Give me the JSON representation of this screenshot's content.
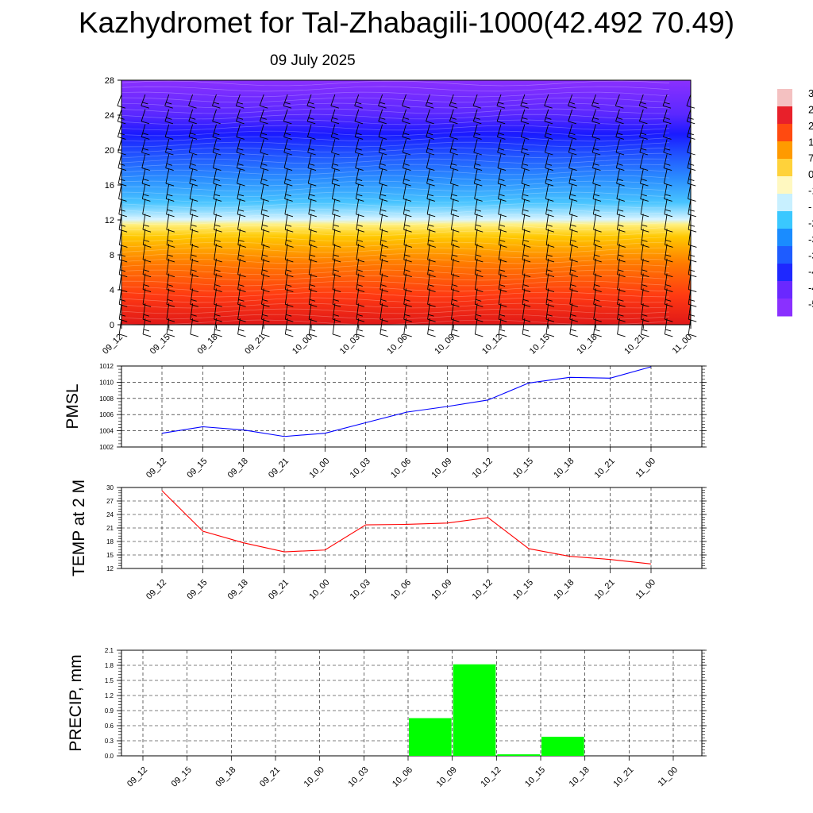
{
  "header": {
    "title": "Kazhydromet for Tal-Zhabagili-1000(42.492 70.49)",
    "subtitle": "09 July 2025"
  },
  "chart_data": [
    {
      "type": "heatmap",
      "title": "",
      "x_ticks": [
        "09_12",
        "09_15",
        "09_18",
        "09_21",
        "10_00",
        "10_03",
        "10_06",
        "10_09",
        "10_12",
        "10_15",
        "10_18",
        "10_21",
        "11_00"
      ],
      "ylim": [
        0,
        28
      ],
      "y_ticks": [
        "0",
        "4",
        "8",
        "12",
        "16",
        "20",
        "24",
        "28"
      ],
      "colorbar": {
        "labels": [
          "3",
          "2",
          "2",
          "1",
          "7",
          "0",
          "-1",
          "-",
          "-2",
          "-3",
          "-3",
          "-4",
          "-4",
          "-5"
        ],
        "colors": [
          "#f4c1c1",
          "#e8202a",
          "#ff4a10",
          "#ff9a00",
          "#ffd23a",
          "#fff8c0",
          "#c8f0ff",
          "#3ac8ff",
          "#1a8cff",
          "#1e5cff",
          "#1e28ff",
          "#6a28ff",
          "#8a30ff"
        ]
      },
      "features": {
        "wind_barbs": true,
        "contour_lines": true
      }
    },
    {
      "type": "line",
      "ylabel": "PMSL",
      "x": [
        "09_12",
        "09_15",
        "09_18",
        "09_21",
        "10_00",
        "10_03",
        "10_06",
        "10_09",
        "10_12",
        "10_15",
        "10_18",
        "10_21",
        "11_00"
      ],
      "y_ticks": [
        "1002",
        "1004",
        "1006",
        "1008",
        "1010",
        "1012"
      ],
      "ylim": [
        1002,
        1012
      ],
      "values": [
        1003.7,
        1004.5,
        1004.1,
        1003.3,
        1003.7,
        1005.0,
        1006.3,
        1007.0,
        1007.8,
        1009.9,
        1010.6,
        1010.5,
        1011.9
      ],
      "color": "#0000ff",
      "grid": true
    },
    {
      "type": "line",
      "ylabel": "TEMP at 2 M",
      "x": [
        "09_12",
        "09_15",
        "09_18",
        "09_21",
        "10_00",
        "10_03",
        "10_06",
        "10_09",
        "10_12",
        "10_15",
        "10_18",
        "10_21",
        "11_00"
      ],
      "y_ticks": [
        "12",
        "15",
        "18",
        "21",
        "24",
        "27",
        "30"
      ],
      "ylim": [
        12,
        30
      ],
      "values": [
        29.3,
        20.3,
        17.7,
        15.7,
        16.1,
        21.7,
        21.8,
        22.1,
        23.3,
        16.4,
        14.7,
        14.0,
        13.0
      ],
      "color": "#ff0000",
      "grid": true
    },
    {
      "type": "bar",
      "ylabel": "PRECIP, mm",
      "categories": [
        "09_12",
        "09_15",
        "09_18",
        "09_21",
        "10_00",
        "10_03",
        "10_06",
        "10_09",
        "10_12",
        "10_15",
        "10_18",
        "10_21",
        "11_00"
      ],
      "y_ticks": [
        "0.0",
        "0.3",
        "0.6",
        "0.9",
        "1.2",
        "1.5",
        "1.8",
        "2.1"
      ],
      "ylim": [
        0,
        2.1
      ],
      "values": [
        0,
        0,
        0,
        0,
        0,
        0,
        0.75,
        1.82,
        0.03,
        0.38,
        0,
        0,
        0
      ],
      "color": "#00ff00",
      "grid": true
    }
  ]
}
